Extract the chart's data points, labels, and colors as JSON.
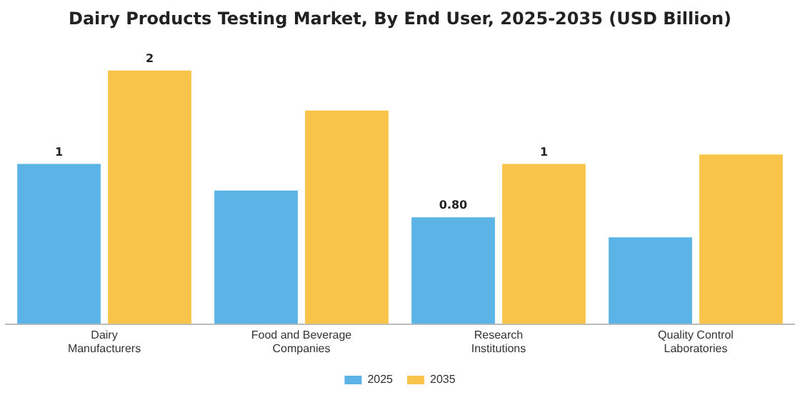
{
  "chart_data": {
    "type": "bar",
    "title": "Dairy Products Testing Market, By End User, 2025-2035 (USD Billion)",
    "categories": [
      "Dairy Manufacturers",
      "Food and Beverage Companies",
      "Research Institutions",
      "Quality Control Laboratories"
    ],
    "series": [
      {
        "name": "2025",
        "color": "#5bb3e6",
        "values": [
          1.2,
          1.0,
          0.8,
          0.65
        ],
        "value_labels": [
          "1",
          null,
          "0.80",
          null
        ]
      },
      {
        "name": "2035",
        "color": "#f9c44a",
        "values": [
          1.9,
          1.6,
          1.2,
          1.27
        ],
        "value_labels": [
          "2",
          null,
          "1",
          null
        ]
      }
    ],
    "legend": "bottom",
    "grid": false
  }
}
